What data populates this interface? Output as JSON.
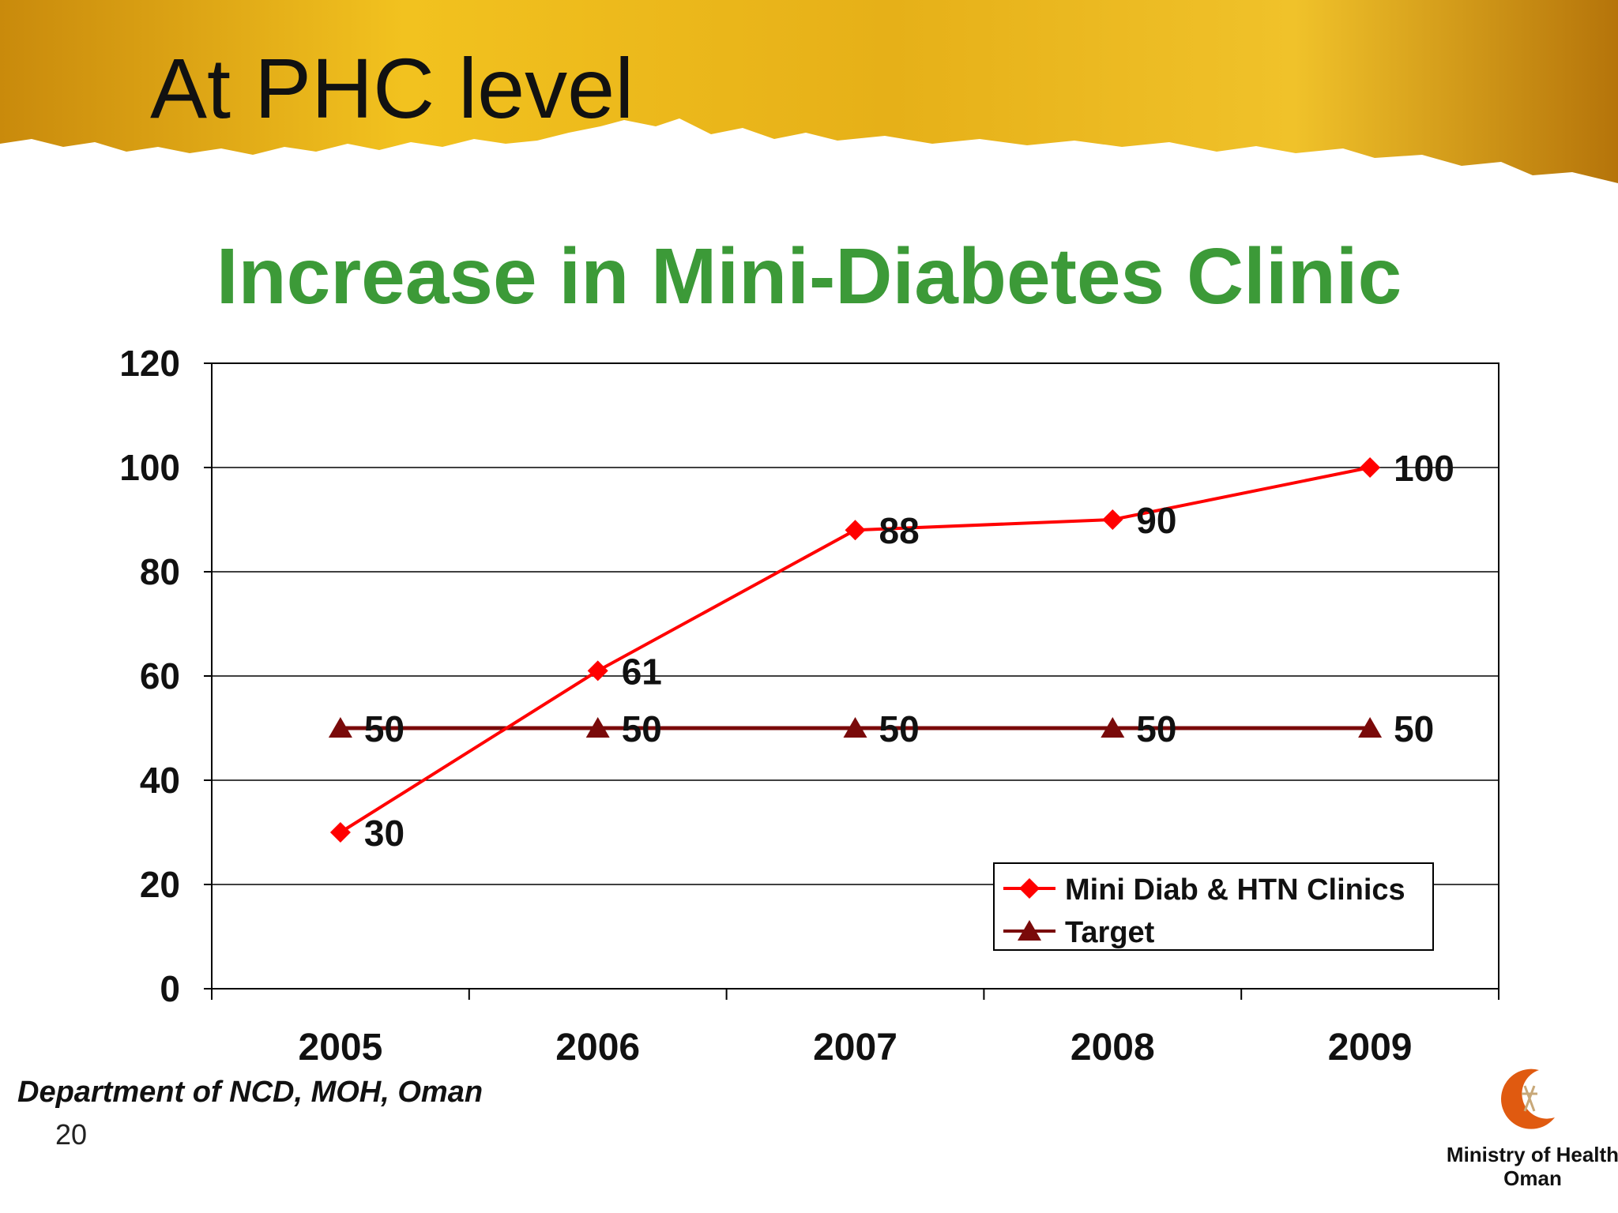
{
  "slide": {
    "title": "At PHC level",
    "source": "Department of NCD, MOH, Oman",
    "page_number": "20",
    "ministry_line1": "Ministry of Health",
    "ministry_line2": "Oman",
    "header_color": "#e8b21a"
  },
  "chart_data": {
    "type": "line",
    "title": "Increase in Mini-Diabetes Clinic",
    "categories": [
      "2005",
      "2006",
      "2007",
      "2008",
      "2009"
    ],
    "ylim": [
      0,
      120
    ],
    "yticks": [
      0,
      20,
      40,
      60,
      80,
      100,
      120
    ],
    "grid": true,
    "legend_position": "bottom-right",
    "series": [
      {
        "name": "Mini Diab & HTN Clinics",
        "values": [
          30,
          61,
          88,
          90,
          100
        ],
        "color": "#ff0000",
        "marker": "diamond"
      },
      {
        "name": "Target",
        "values": [
          50,
          50,
          50,
          50,
          50
        ],
        "color": "#7a0a0a",
        "marker": "triangle"
      }
    ]
  }
}
